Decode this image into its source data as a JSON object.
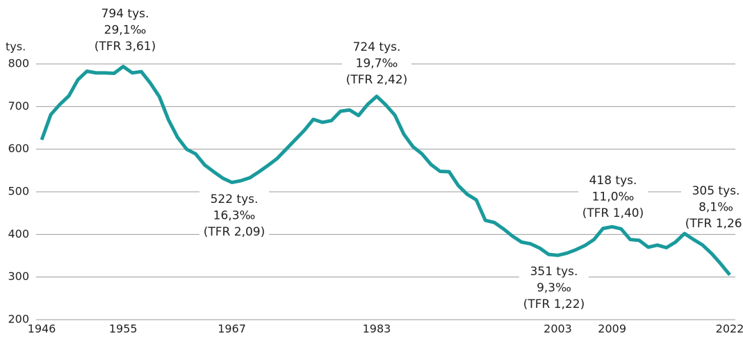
{
  "chart_data": {
    "type": "line",
    "y_label": "tys.",
    "x": [
      1946,
      1947,
      1948,
      1949,
      1950,
      1951,
      1952,
      1953,
      1954,
      1955,
      1956,
      1957,
      1958,
      1959,
      1960,
      1961,
      1962,
      1963,
      1964,
      1965,
      1966,
      1967,
      1968,
      1969,
      1970,
      1971,
      1972,
      1973,
      1974,
      1975,
      1976,
      1977,
      1978,
      1979,
      1980,
      1981,
      1982,
      1983,
      1984,
      1985,
      1986,
      1987,
      1988,
      1989,
      1990,
      1991,
      1992,
      1993,
      1994,
      1995,
      1996,
      1997,
      1998,
      1999,
      2000,
      2001,
      2002,
      2003,
      2004,
      2005,
      2006,
      2007,
      2008,
      2009,
      2010,
      2011,
      2012,
      2013,
      2014,
      2015,
      2016,
      2017,
      2018,
      2019,
      2020,
      2021,
      2022
    ],
    "series": [
      {
        "color": "#1a9a9c",
        "values": [
          622,
          681,
          705,
          725,
          763,
          783,
          779,
          779,
          778,
          794,
          779,
          782,
          755,
          723,
          669,
          628,
          600,
          589,
          563,
          547,
          532,
          522,
          526,
          533,
          547,
          562,
          578,
          600,
          622,
          644,
          670,
          663,
          667,
          689,
          692,
          679,
          705,
          724,
          704,
          680,
          635,
          606,
          589,
          564,
          548,
          547,
          515,
          494,
          481,
          433,
          428,
          413,
          396,
          382,
          378,
          368,
          353,
          351,
          356,
          364,
          374,
          388,
          414,
          418,
          413,
          388,
          386,
          370,
          375,
          369,
          382,
          402,
          388,
          375,
          355,
          331,
          305
        ]
      }
    ],
    "xlim": [
      1946,
      2022
    ],
    "xticks": [
      1946,
      1955,
      1967,
      1983,
      2003,
      2009,
      2022
    ],
    "ylim": [
      200,
      800
    ],
    "yticks": [
      200,
      300,
      400,
      500,
      600,
      700,
      800
    ],
    "grid": true,
    "annotations": [
      {
        "lines": [
          "794 tys.",
          "29,1‰",
          "(TFR 3,61)"
        ]
      },
      {
        "lines": [
          "724 tys.",
          "19,7‰",
          "(TFR 2,42)"
        ]
      },
      {
        "lines": [
          "522 tys.",
          "16,3‰",
          "(TFR 2,09)"
        ]
      },
      {
        "lines": [
          "351 tys.",
          "9,3‰",
          "(TFR 1,22)"
        ]
      },
      {
        "lines": [
          "418 tys.",
          "11,0‰",
          "(TFR 1,40)"
        ]
      },
      {
        "lines": [
          "305 tys.",
          "8,1‰",
          "(TFR 1,26)"
        ]
      }
    ]
  }
}
